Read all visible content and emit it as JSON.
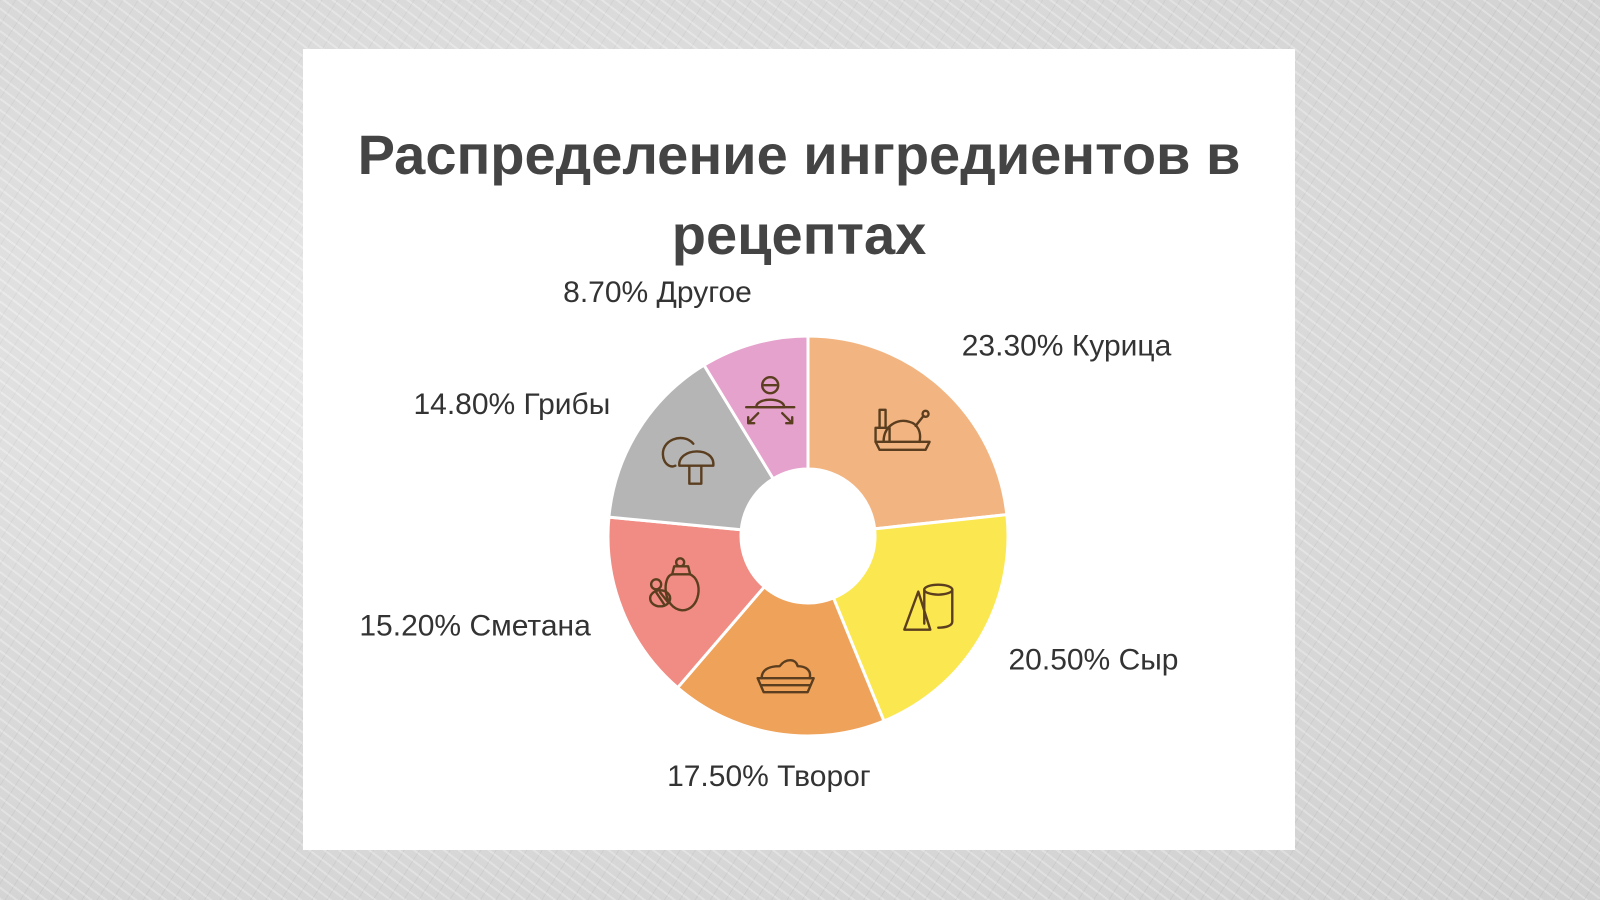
{
  "colors": {
    "text": "#333333",
    "icon_stroke": "#5a3e1f",
    "card_background": "#ffffff"
  },
  "chart_data": {
    "type": "pie",
    "donut": true,
    "title": "Распределение ингредиентов в рецептах",
    "slices": [
      {
        "label": "23.30% Курица",
        "name": "Курица",
        "value": 23.3,
        "color": "#f2b582",
        "icon": "chicken-icon"
      },
      {
        "label": "20.50% Сыр",
        "name": "Сыр",
        "value": 20.5,
        "color": "#fbe74f",
        "icon": "cheese-icon"
      },
      {
        "label": "17.50% Творог",
        "name": "Творог",
        "value": 17.5,
        "color": "#efa25a",
        "icon": "cottage-cheese-icon"
      },
      {
        "label": "15.20% Сметана",
        "name": "Сметана",
        "value": 15.2,
        "color": "#f08c83",
        "icon": "sour-cream-icon"
      },
      {
        "label": "14.80% Грибы",
        "name": "Грибы",
        "value": 14.8,
        "color": "#b5b5b5",
        "icon": "mushroom-icon"
      },
      {
        "label": "8.70% Другое",
        "name": "Другое",
        "value": 8.7,
        "color": "#e5a2cc",
        "icon": "other-icon"
      }
    ]
  }
}
